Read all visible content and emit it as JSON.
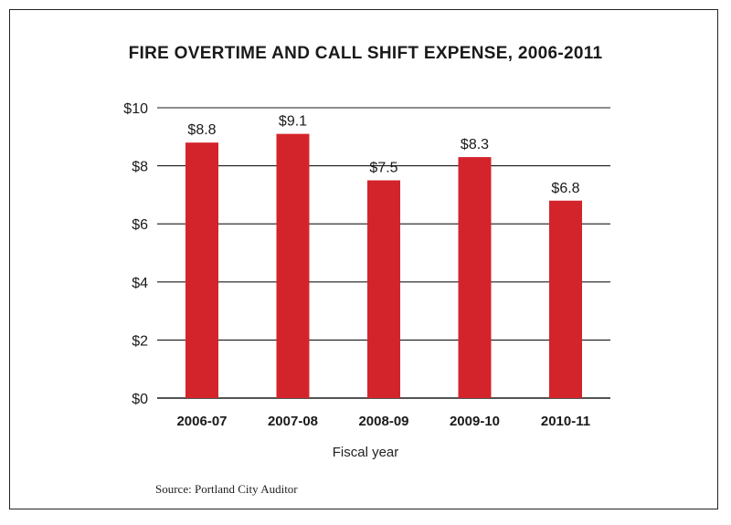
{
  "colors": {
    "bar": "#d4242b",
    "grid": "#1a1a1a",
    "text": "#1a1a1a"
  },
  "chart_data": {
    "type": "bar",
    "title": "FIRE OVERTIME AND CALL SHIFT EXPENSE, 2006-2011",
    "xlabel": "Fiscal year",
    "ylabel": "",
    "categories": [
      "2006-07",
      "2007-08",
      "2008-09",
      "2009-10",
      "2010-11"
    ],
    "values": [
      8.8,
      9.1,
      7.5,
      8.3,
      6.8
    ],
    "value_labels": [
      "$8.8",
      "$9.1",
      "$7.5",
      "$8.3",
      "$6.8"
    ],
    "ylim": [
      0,
      10
    ],
    "yticks": [
      0,
      2,
      4,
      6,
      8,
      10
    ],
    "ytick_labels": [
      "$0",
      "$2",
      "$4",
      "$6",
      "$8",
      "$10"
    ],
    "grid": true,
    "legend": "none"
  },
  "source": "Source: Portland City Auditor"
}
